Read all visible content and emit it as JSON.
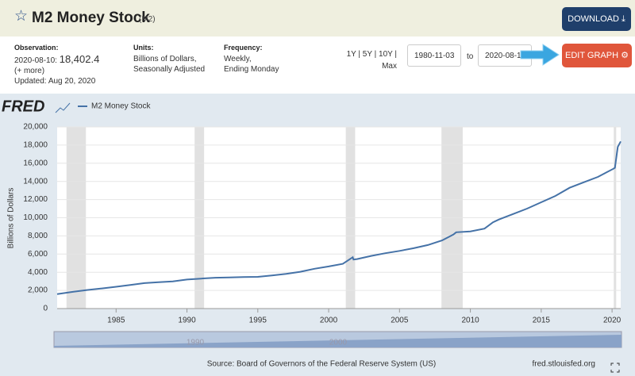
{
  "header": {
    "title": "M2 Money Stock",
    "code": "(M2)",
    "download": "DOWNLOAD"
  },
  "observation": {
    "label": "Observation:",
    "date": "2020-08-10:",
    "value": "18,402.4",
    "more": "(+ more)",
    "updated": "Updated: Aug 20, 2020"
  },
  "units": {
    "label": "Units:",
    "lines": [
      "Billions of Dollars,",
      "Seasonally Adjusted"
    ]
  },
  "frequency": {
    "label": "Frequency:",
    "lines": [
      "Weekly,",
      "Ending Monday"
    ]
  },
  "range": {
    "presets": "1Y | 5Y | 10Y |",
    "max": "Max",
    "start": "1980-11-03",
    "to": "to",
    "end": "2020-08-10",
    "edit": "EDIT GRAPH"
  },
  "navigator": {
    "labels": [
      "1990",
      "2000"
    ]
  },
  "chart_data": {
    "type": "line",
    "logo": "FRED",
    "y_label": "Billions of Dollars",
    "source": "Source: Board of Governors of the Federal Reserve System (US)",
    "site": "fred.stlouisfed.org",
    "xlim": [
      1980.84,
      2020.61
    ],
    "xticks": [
      1985,
      1990,
      1995,
      2000,
      2005,
      2010,
      2015,
      2020
    ],
    "ylim": [
      0,
      20000
    ],
    "yticks": [
      0,
      {
        "value": 2000,
        "label": "2,000"
      },
      {
        "value": 4000,
        "label": "4,000"
      },
      {
        "value": 6000,
        "label": "6,000"
      },
      {
        "value": 8000,
        "label": "8,000"
      },
      {
        "value": 10000,
        "label": "10,000"
      },
      {
        "value": 12000,
        "label": "12,000"
      },
      {
        "value": 14000,
        "label": "14,000"
      },
      {
        "value": 16000,
        "label": "16,000"
      },
      {
        "value": 18000,
        "label": "18,000"
      },
      {
        "value": 20000,
        "label": "20,000"
      }
    ],
    "grid": true,
    "recessions": [
      [
        1981.5,
        1982.87
      ],
      [
        1990.54,
        1991.21
      ],
      [
        2001.21,
        2001.87
      ],
      [
        2007.96,
        2009.46
      ],
      [
        2020.12,
        2020.29
      ]
    ],
    "series": [
      {
        "name": "M2 Money Stock",
        "color": "#4572a7",
        "x": [
          1980.84,
          1982,
          1983,
          1984,
          1985,
          1986,
          1987,
          1988,
          1989,
          1990,
          1991,
          1992,
          1993,
          1994,
          1995,
          1996,
          1997,
          1998,
          1999,
          2000,
          2001,
          2001.7,
          2001.75,
          2002,
          2003,
          2004,
          2005,
          2006,
          2007,
          2008,
          2008.8,
          2009,
          2010,
          2011,
          2011.6,
          2012,
          2013,
          2014,
          2015,
          2016,
          2017,
          2018,
          2019,
          2020.1,
          2020.2,
          2020.4,
          2020.61
        ],
        "values": [
          1600,
          1850,
          2050,
          2220,
          2400,
          2600,
          2800,
          2900,
          3000,
          3200,
          3300,
          3400,
          3420,
          3480,
          3490,
          3640,
          3820,
          4050,
          4380,
          4640,
          4930,
          5650,
          5400,
          5450,
          5800,
          6100,
          6350,
          6650,
          7000,
          7500,
          8150,
          8400,
          8500,
          8800,
          9500,
          9800,
          10400,
          11000,
          11700,
          12400,
          13300,
          13900,
          14500,
          15400,
          15500,
          17800,
          18402.4
        ]
      }
    ]
  }
}
